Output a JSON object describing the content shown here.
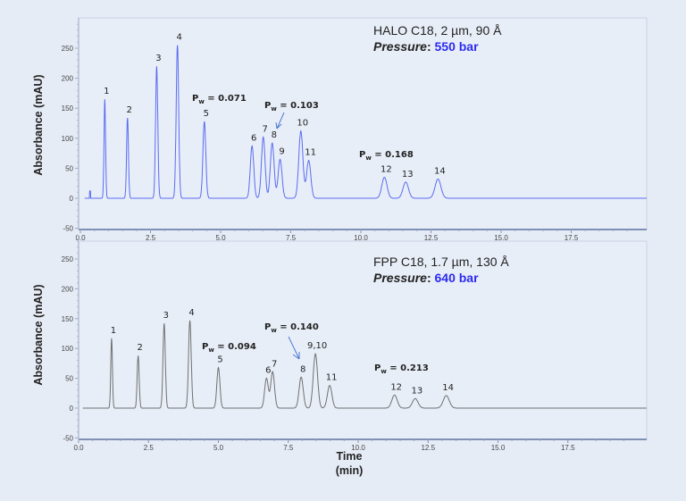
{
  "chart_data": [
    {
      "type": "line",
      "title": "HALO C18, 2 µm, 90 Å",
      "pressure_label": "Pressure",
      "pressure_value": "550 bar",
      "pressure_color": "#2b2bf0",
      "line_color": "#5a6cf0",
      "ylabel": "Absorbance (mAU)",
      "xlabel": "",
      "xlim": [
        0,
        20.2
      ],
      "ylim": [
        -55,
        300
      ],
      "xticks": [
        "0.0",
        "2.5",
        "5.0",
        "7.5",
        "10.0",
        "12.5",
        "15.0",
        "17.5"
      ],
      "yticks": [
        "-50",
        "0",
        "50",
        "100",
        "150",
        "200",
        "250"
      ],
      "peaks": [
        {
          "label": "1",
          "time": 0.87,
          "height": 165
        },
        {
          "label": "2",
          "time": 1.68,
          "height": 134
        },
        {
          "label": "3",
          "time": 2.72,
          "height": 220
        },
        {
          "label": "4",
          "time": 3.46,
          "height": 255
        },
        {
          "label": "5",
          "time": 4.42,
          "height": 128
        },
        {
          "label": "6",
          "time": 6.12,
          "height": 87
        },
        {
          "label": "7",
          "time": 6.52,
          "height": 102
        },
        {
          "label": "8",
          "time": 6.84,
          "height": 92
        },
        {
          "label": "9",
          "time": 7.12,
          "height": 65
        },
        {
          "label": "10",
          "time": 7.86,
          "height": 112
        },
        {
          "label": "11",
          "time": 8.14,
          "height": 63
        },
        {
          "label": "12",
          "time": 10.84,
          "height": 35
        },
        {
          "label": "13",
          "time": 11.6,
          "height": 27
        },
        {
          "label": "14",
          "time": 12.75,
          "height": 32
        }
      ],
      "annotations": [
        {
          "symbol": "P",
          "sub": "w",
          "text": " = 0.071"
        },
        {
          "symbol": "P",
          "sub": "w",
          "text": " = 0.103"
        },
        {
          "symbol": "P",
          "sub": "w",
          "text": " = 0.168"
        }
      ]
    },
    {
      "type": "line",
      "title": "FPP C18, 1.7 µm, 130 Å",
      "pressure_label": "Pressure",
      "pressure_value": "640 bar",
      "pressure_color": "#2b2bf0",
      "line_color": "#707070",
      "ylabel": "Absorbance (mAU)",
      "xlabel": "Time",
      "xlabel_unit": "(min)",
      "xlim": [
        0,
        20.3
      ],
      "ylim": [
        -55,
        300
      ],
      "xticks": [
        "0.0",
        "2.5",
        "5.0",
        "7.5",
        "10.0",
        "12.5",
        "15.0",
        "17.5"
      ],
      "yticks": [
        "-50",
        "0",
        "50",
        "100",
        "150",
        "200",
        "250"
      ],
      "peaks": [
        {
          "label": "1",
          "time": 1.18,
          "height": 117
        },
        {
          "label": "2",
          "time": 2.13,
          "height": 88
        },
        {
          "label": "3",
          "time": 3.06,
          "height": 142
        },
        {
          "label": "4",
          "time": 3.98,
          "height": 147
        },
        {
          "label": "5",
          "time": 5.0,
          "height": 68
        },
        {
          "label": "6",
          "time": 6.72,
          "height": 50
        },
        {
          "label": "7",
          "time": 6.94,
          "height": 61
        },
        {
          "label": "8",
          "time": 7.96,
          "height": 52
        },
        {
          "label": "9,10",
          "time": 8.47,
          "height": 91
        },
        {
          "label": "11",
          "time": 8.98,
          "height": 38
        },
        {
          "label": "12",
          "time": 11.3,
          "height": 22
        },
        {
          "label": "13",
          "time": 12.04,
          "height": 16
        },
        {
          "label": "14",
          "time": 13.15,
          "height": 21
        }
      ],
      "annotations": [
        {
          "symbol": "P",
          "sub": "w",
          "text": " = 0.094"
        },
        {
          "symbol": "P",
          "sub": "w",
          "text": " = 0.140"
        },
        {
          "symbol": "P",
          "sub": "w",
          "text": " = 0.213"
        }
      ]
    }
  ]
}
